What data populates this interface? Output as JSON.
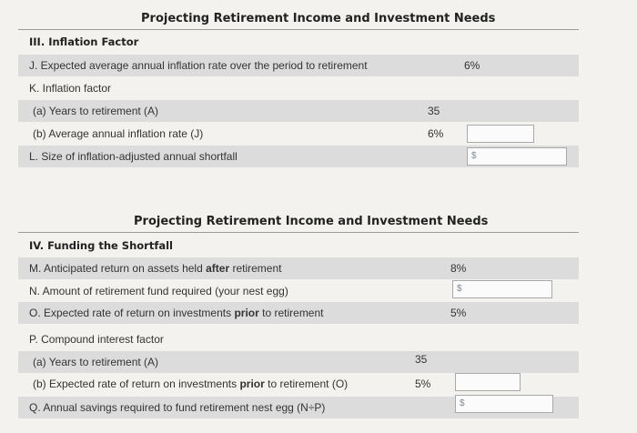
{
  "part3": {
    "title": "Projecting Retirement Income and Investment Needs",
    "section": "III. Inflation Factor",
    "rows": [
      {
        "label": "J. Expected average annual inflation rate over the period to retirement",
        "value": "6%"
      },
      {
        "label": "K. Inflation factor"
      },
      {
        "label": "(a) Years to retirement (A)",
        "value": "35"
      },
      {
        "label": "(b) Average annual inflation rate (J)",
        "value": "6%"
      },
      {
        "label": "L. Size of inflation-adjusted annual shortfall",
        "prefix": "$"
      }
    ]
  },
  "part4": {
    "title": "Projecting Retirement Income and Investment Needs",
    "section": "IV. Funding the Shortfall",
    "rows": [
      {
        "label_pre": "M. Anticipated return on assets held ",
        "label_bold": "after",
        "label_post": " retirement",
        "value": "8%"
      },
      {
        "label": "N. Amount of retirement fund required (your nest egg)",
        "prefix": "$"
      },
      {
        "label_pre": "O. Expected rate of return on investments ",
        "label_bold": "prior",
        "label_post": " to retirement",
        "value": "5%"
      },
      {
        "label": "P. Compound interest factor"
      },
      {
        "label": "(a) Years to retirement (A)",
        "value": "35"
      },
      {
        "label_pre": "(b) Expected rate of return on investments ",
        "label_bold": "prior",
        "label_post": " to retirement (O)",
        "value": "5%"
      },
      {
        "label": "Q. Annual savings required to fund retirement nest egg (N÷P)",
        "prefix": "$"
      }
    ]
  }
}
